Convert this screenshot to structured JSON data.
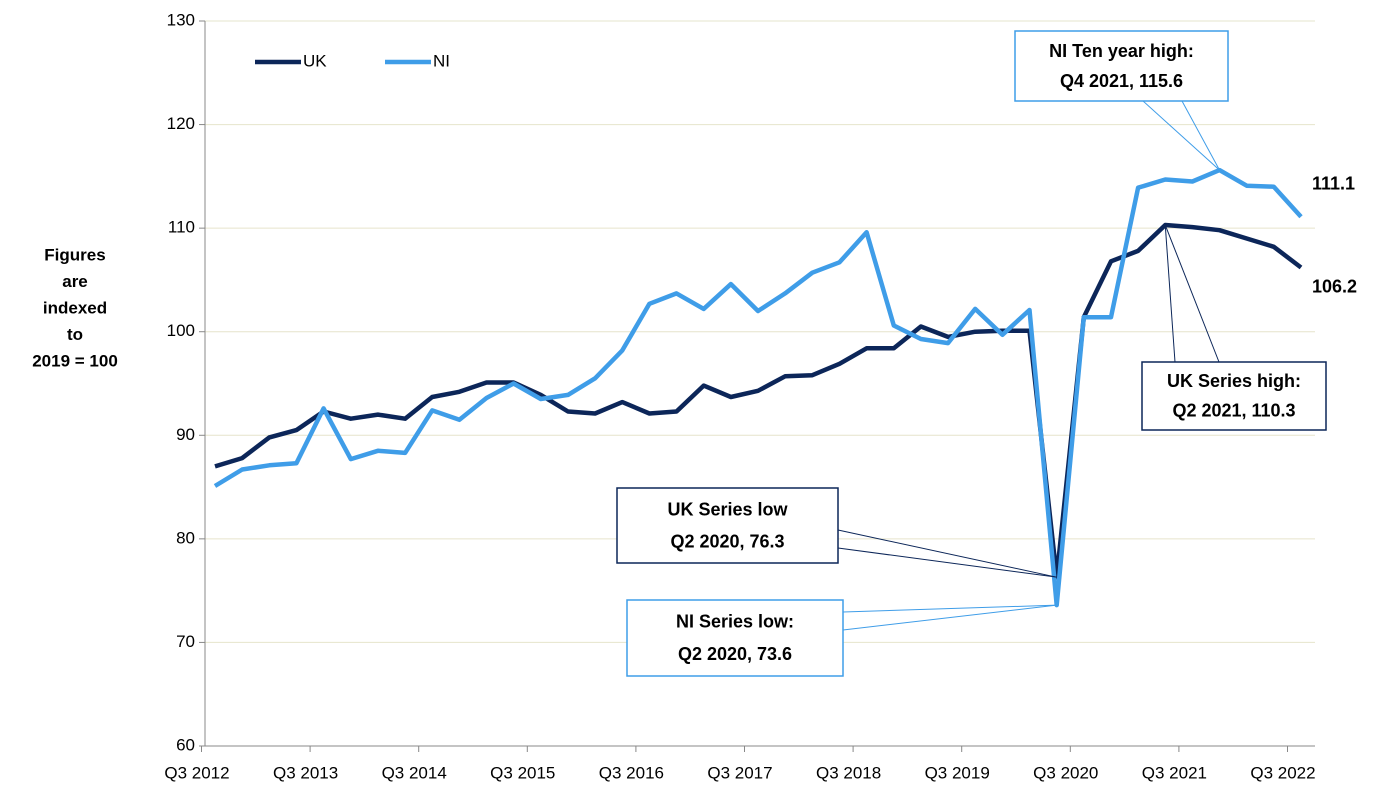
{
  "chart_data": {
    "type": "line",
    "y_label": [
      "Figures",
      "are",
      "indexed",
      "to",
      "2019 = 100"
    ],
    "categories": [
      "Q3 2012",
      null,
      null,
      null,
      "Q3 2013",
      null,
      null,
      null,
      "Q3 2014",
      null,
      null,
      null,
      "Q3 2015",
      null,
      null,
      null,
      "Q3 2016",
      null,
      null,
      null,
      "Q3 2017",
      null,
      null,
      null,
      "Q3 2018",
      null,
      null,
      null,
      "Q3 2019",
      null,
      null,
      null,
      "Q3 2020",
      null,
      null,
      null,
      "Q3 2021",
      null,
      null,
      null,
      "Q3 2022"
    ],
    "series": [
      {
        "name": "UK",
        "color": "#0c2659",
        "values": [
          87.0,
          87.8,
          89.8,
          90.5,
          92.3,
          91.6,
          92.0,
          91.6,
          93.7,
          94.2,
          95.1,
          95.1,
          93.9,
          92.3,
          92.1,
          93.2,
          92.1,
          92.3,
          94.8,
          93.7,
          94.3,
          95.7,
          95.8,
          96.9,
          98.4,
          98.4,
          100.5,
          99.5,
          100.0,
          100.1,
          100.1,
          76.3,
          101.4,
          106.8,
          107.8,
          110.3,
          110.1,
          109.8,
          109.0,
          108.2,
          106.2
        ]
      },
      {
        "name": "NI",
        "color": "#3f9de8",
        "values": [
          85.1,
          86.7,
          87.1,
          87.3,
          92.6,
          87.7,
          88.5,
          88.3,
          92.4,
          91.5,
          93.6,
          95.0,
          93.5,
          93.9,
          95.5,
          98.2,
          102.7,
          103.7,
          102.2,
          104.6,
          102.0,
          103.7,
          105.7,
          106.7,
          109.6,
          100.6,
          99.3,
          98.9,
          102.2,
          99.7,
          102.1,
          73.6,
          101.4,
          101.4,
          113.9,
          114.7,
          114.5,
          115.6,
          114.1,
          114.0,
          111.1
        ]
      }
    ],
    "ylim": [
      60,
      130
    ],
    "yticks": [
      60,
      70,
      80,
      90,
      100,
      110,
      120,
      130
    ],
    "grid": true,
    "legend": "top-left",
    "annotations": [
      {
        "lines": [
          "NI Ten year high:",
          "Q4 2021, 115.6"
        ],
        "color": "#3f9de8"
      },
      {
        "lines": [
          "UK Series high:",
          "Q2 2021, 110.3"
        ],
        "color": "#0c2659"
      },
      {
        "lines": [
          "UK Series low",
          "Q2 2020, 76.3"
        ],
        "color": "#0c2659"
      },
      {
        "lines": [
          "NI Series low:",
          "Q2 2020, 73.6"
        ],
        "color": "#3f9de8"
      }
    ]
  }
}
